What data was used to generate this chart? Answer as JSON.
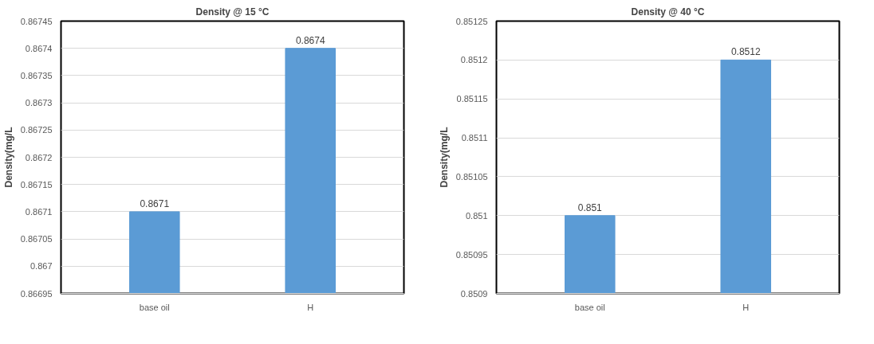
{
  "chart_data": [
    {
      "type": "bar",
      "title": "Density @ 15 °C",
      "ylabel": "Density(mg/L",
      "categories": [
        "base oil",
        "H"
      ],
      "values": [
        0.8671,
        0.8674
      ],
      "color": "#5b9bd5",
      "ylim": [
        0.86695,
        0.86745
      ],
      "yticks": [
        0.86695,
        0.867,
        0.86705,
        0.8671,
        0.86715,
        0.8672,
        0.86725,
        0.8673,
        0.86735,
        0.8674,
        0.86745
      ],
      "grid": "y",
      "data_labels": true
    },
    {
      "type": "bar",
      "title": "Density @ 40 °C",
      "ylabel": "Density(mg/L",
      "categories": [
        "base oil",
        "H"
      ],
      "values": [
        0.851,
        0.8512
      ],
      "color": "#5b9bd5",
      "ylim": [
        0.8509,
        0.85125
      ],
      "yticks": [
        0.8509,
        0.85095,
        0.851,
        0.85105,
        0.8511,
        0.85115,
        0.8512,
        0.85125
      ],
      "grid": "y",
      "data_labels": true
    }
  ]
}
